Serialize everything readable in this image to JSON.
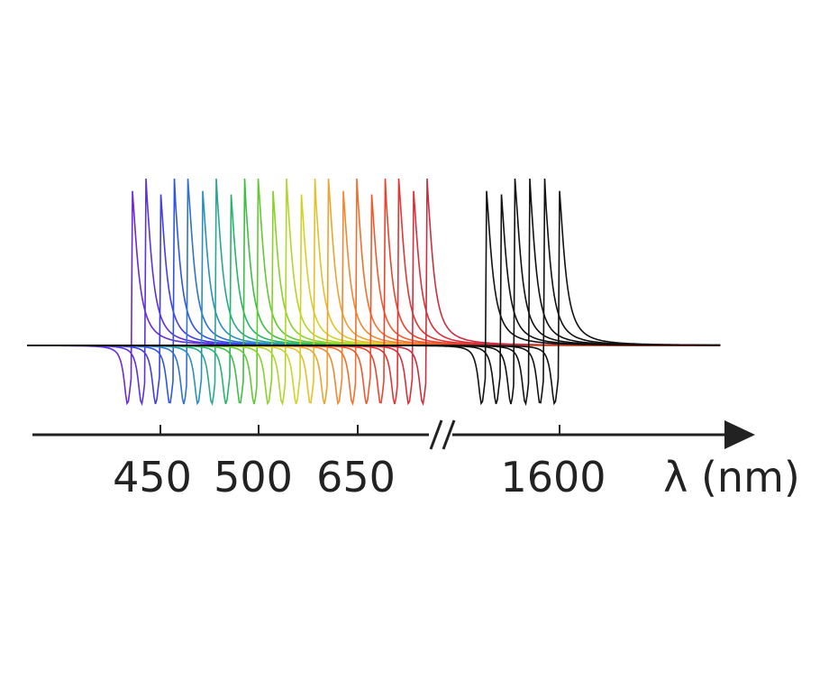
{
  "chart_data": {
    "type": "line",
    "title": "",
    "xlabel": "λ (nm)",
    "ylabel": "",
    "grid": false,
    "legend": "none",
    "axis_break": true,
    "x_ticks": [
      {
        "label": "450"
      },
      {
        "label": "500"
      },
      {
        "label": "650"
      },
      {
        "label": "1600"
      }
    ],
    "resonance_groups": [
      {
        "name": "",
        "count": 22,
        "colors": [
          "#6a2ad8",
          "#5a32e0",
          "#3e3ee8",
          "#2f55e4",
          "#2f72d0",
          "#2a8fbe",
          "#2aa68e",
          "#27b46c",
          "#3ebe43",
          "#62c932",
          "#8ad12a",
          "#b0d62a",
          "#cfd327",
          "#e2c12b",
          "#eba431",
          "#ef8830",
          "#f0702c",
          "#ee5a2b",
          "#e8442e",
          "#e03634",
          "#d7303c",
          "#c83041"
        ]
      },
      {
        "name": "",
        "count": 6,
        "colors": [
          "#111111",
          "#111111",
          "#111111",
          "#111111",
          "#111111",
          "#111111"
        ]
      }
    ]
  }
}
